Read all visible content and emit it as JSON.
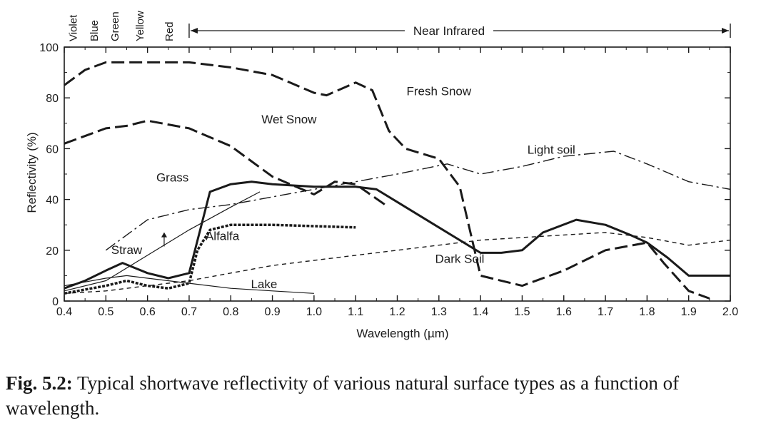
{
  "chart_data": {
    "type": "line",
    "xlabel": "Wavelength (µm)",
    "ylabel": "Reflectivity (%)",
    "xlim": [
      0.4,
      2.0
    ],
    "ylim": [
      0,
      100
    ],
    "x_ticks": [
      "0.4",
      "0.5",
      "0.6",
      "0.7",
      "0.8",
      "0.9",
      "1.0",
      "1.1",
      "1.2",
      "1.3",
      "1.4",
      "1.5",
      "1.6",
      "1.7",
      "1.8",
      "1.9",
      "2.0"
    ],
    "y_ticks": [
      "0",
      "20",
      "40",
      "60",
      "80",
      "100"
    ],
    "grid": false,
    "bands": [
      {
        "name": "Violet",
        "x": 0.42
      },
      {
        "name": "Blue",
        "x": 0.47
      },
      {
        "name": "Green",
        "x": 0.52
      },
      {
        "name": "Yellow",
        "x": 0.58
      },
      {
        "name": "Red",
        "x": 0.65
      }
    ],
    "near_infrared": {
      "label": "Near Infrared",
      "from": 0.7,
      "to": 2.0
    },
    "series": [
      {
        "name": "Fresh Snow",
        "style": "longdash",
        "width": 3,
        "label_at": [
          1.3,
          81
        ],
        "x": [
          0.4,
          0.45,
          0.5,
          0.6,
          0.7,
          0.8,
          0.9,
          1.0,
          1.03,
          1.1,
          1.14,
          1.18,
          1.22,
          1.3,
          1.35,
          1.4,
          1.5,
          1.6,
          1.7,
          1.8,
          1.84,
          1.9,
          1.95
        ],
        "y": [
          85,
          91,
          94,
          94,
          94,
          92,
          89,
          82,
          81,
          86,
          83,
          67,
          60,
          56,
          45,
          10,
          6,
          12,
          20,
          23,
          15,
          4,
          1
        ]
      },
      {
        "name": "Wet Snow",
        "style": "longdash",
        "width": 3,
        "label_at": [
          0.94,
          70
        ],
        "x": [
          0.4,
          0.5,
          0.55,
          0.6,
          0.7,
          0.8,
          0.9,
          1.0,
          1.05,
          1.1,
          1.17
        ],
        "y": [
          62,
          68,
          69,
          71,
          68,
          61,
          49,
          42,
          47,
          46,
          38
        ]
      },
      {
        "name": "Light soil",
        "style": "dashdot",
        "width": 1.4,
        "label_at": [
          1.57,
          58
        ],
        "x": [
          0.5,
          0.6,
          0.7,
          0.8,
          0.9,
          1.0,
          1.1,
          1.2,
          1.32,
          1.4,
          1.5,
          1.6,
          1.72,
          1.8,
          1.9,
          2.0
        ],
        "y": [
          20,
          32,
          36,
          38,
          41,
          44,
          47,
          50,
          54,
          50,
          53,
          57,
          59,
          54,
          47,
          44
        ]
      },
      {
        "name": "Grass",
        "style": "solid",
        "width": 3,
        "label_at": [
          0.66,
          47
        ],
        "x": [
          0.4,
          0.45,
          0.5,
          0.54,
          0.6,
          0.65,
          0.7,
          0.75,
          0.8,
          0.85,
          0.9,
          1.0,
          1.1,
          1.15,
          1.2,
          1.3,
          1.4,
          1.45,
          1.5,
          1.55,
          1.63,
          1.7,
          1.76,
          1.8,
          1.85,
          1.9,
          2.0
        ],
        "y": [
          5,
          8,
          12,
          15,
          11,
          9,
          11,
          43,
          46,
          47,
          46,
          45,
          45,
          44,
          39,
          29,
          19,
          19,
          20,
          27,
          32,
          30,
          26,
          23,
          17,
          10,
          10
        ]
      },
      {
        "name": "Straw",
        "style": "solid",
        "width": 1.2,
        "label_at": [
          0.55,
          18.5
        ],
        "x": [
          0.4,
          0.5,
          0.6,
          0.7,
          0.8,
          0.87
        ],
        "y": [
          4,
          8,
          18,
          28,
          37,
          43
        ]
      },
      {
        "name": "Alfalfa",
        "style": "dotted",
        "width": 3.5,
        "label_at": [
          0.78,
          24
        ],
        "x": [
          0.4,
          0.5,
          0.55,
          0.6,
          0.65,
          0.7,
          0.72,
          0.75,
          0.8,
          0.9,
          1.0,
          1.1
        ],
        "y": [
          3,
          6,
          8,
          6,
          5,
          7,
          20,
          28,
          30,
          30,
          29.5,
          29
        ]
      },
      {
        "name": "Dark Soil",
        "style": "shortdash",
        "width": 1.4,
        "label_at": [
          1.35,
          15
        ],
        "x": [
          0.4,
          0.5,
          0.6,
          0.7,
          0.8,
          0.9,
          1.0,
          1.1,
          1.2,
          1.3,
          1.4,
          1.5,
          1.6,
          1.7,
          1.8,
          1.9,
          2.0
        ],
        "y": [
          3,
          4,
          6,
          8,
          11,
          14,
          16,
          18,
          20,
          22,
          24,
          25,
          26,
          27,
          25,
          22,
          24
        ]
      },
      {
        "name": "Lake",
        "style": "solid",
        "width": 1.2,
        "label_at": [
          0.88,
          5
        ],
        "x": [
          0.4,
          0.5,
          0.55,
          0.6,
          0.7,
          0.8,
          0.9,
          1.0
        ],
        "y": [
          6,
          9,
          10,
          9,
          7,
          5,
          4,
          3
        ]
      }
    ]
  },
  "caption": {
    "fig_label": "Fig. 5.2:",
    "text": " Typical shortwave reflectivity of various natural surface types as a function of wavelength."
  }
}
